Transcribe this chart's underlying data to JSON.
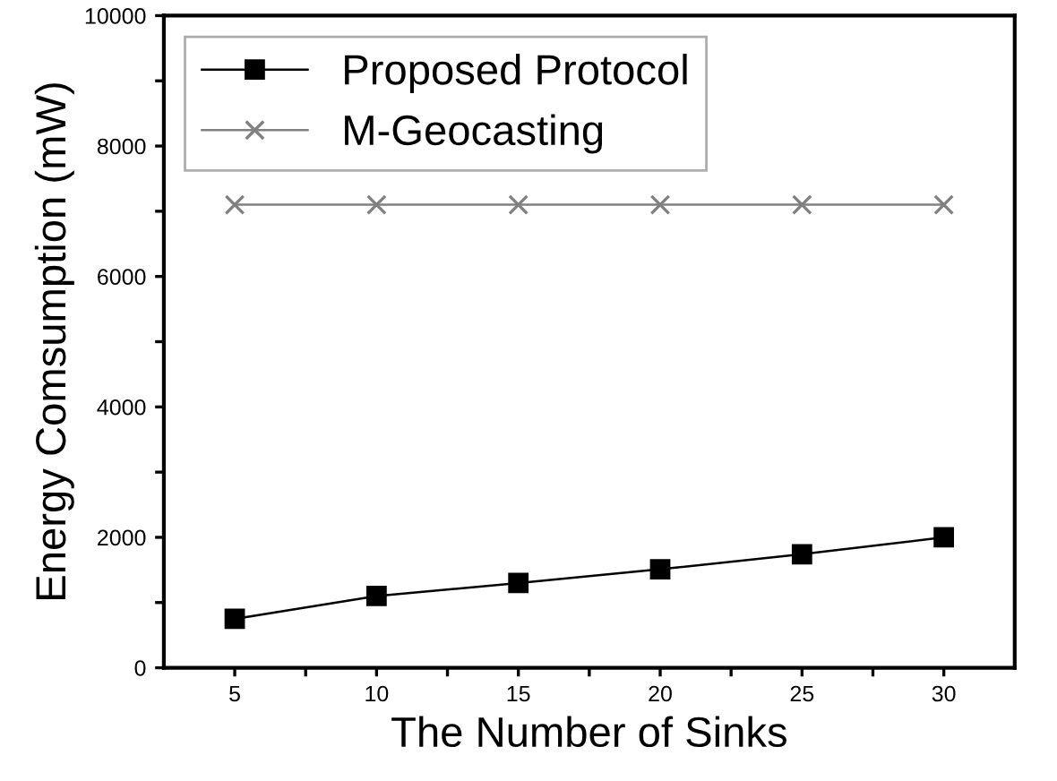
{
  "chart_data": {
    "type": "line",
    "xlabel": "The Number of Sinks",
    "ylabel": "Energy Comsumption (mW)",
    "x": [
      5,
      10,
      15,
      20,
      25,
      30
    ],
    "series": [
      {
        "name": "Proposed Protocol",
        "color": "#000000",
        "marker": "square",
        "values": [
          750,
          1100,
          1300,
          1510,
          1740,
          2000
        ]
      },
      {
        "name": "M-Geocasting",
        "color": "#808080",
        "marker": "cross",
        "values": [
          7100,
          7100,
          7100,
          7100,
          7100,
          7100
        ]
      }
    ],
    "xlim": [
      2.5,
      32.5
    ],
    "xticks": [
      5,
      {
        "value": 7.5,
        "label": null
      },
      10,
      {
        "value": 12.5,
        "label": null
      },
      15,
      {
        "value": 17.5,
        "label": null
      },
      20,
      {
        "value": 22.5,
        "label": null
      },
      25,
      {
        "value": 27.5,
        "label": null
      },
      30
    ],
    "ylim": [
      0,
      10000
    ],
    "yticks": [
      0,
      {
        "value": 1000,
        "label": null
      },
      2000,
      {
        "value": 3000,
        "label": null
      },
      4000,
      {
        "value": 5000,
        "label": null
      },
      6000,
      {
        "value": 7000,
        "label": null
      },
      8000,
      {
        "value": 9000,
        "label": null
      },
      10000
    ],
    "grid": false,
    "legend": "top left",
    "line_style": "solid"
  }
}
